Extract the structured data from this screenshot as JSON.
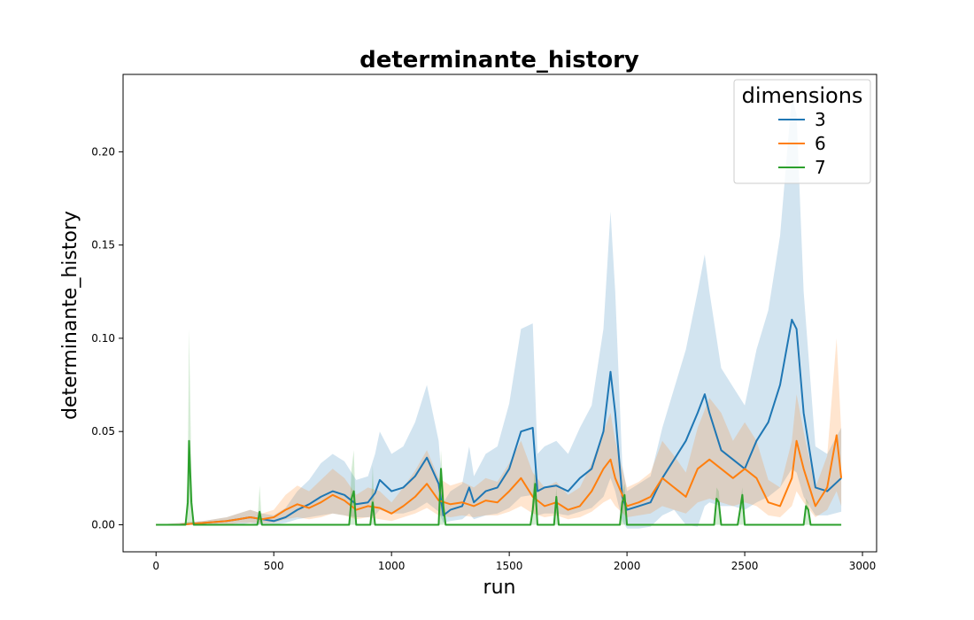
{
  "chart_data": {
    "type": "line",
    "title": "determinante_history",
    "xlabel": "run",
    "ylabel": "determinante_history",
    "xlim": [
      -140,
      3060
    ],
    "ylim": [
      -0.0145,
      0.2415
    ],
    "x_ticks": [
      0,
      500,
      1000,
      1500,
      2000,
      2500,
      3000
    ],
    "y_ticks": [
      0.0,
      0.05,
      0.1,
      0.15,
      0.2
    ],
    "y_tick_labels": [
      "0.00",
      "0.05",
      "0.10",
      "0.15",
      "0.20"
    ],
    "grid": false,
    "legend": {
      "title": "dimensions",
      "placement": "upper right"
    },
    "series": [
      {
        "name": "3",
        "color": "#1f77b4",
        "x": [
          0,
          100,
          200,
          300,
          350,
          400,
          450,
          500,
          550,
          600,
          650,
          700,
          750,
          800,
          850,
          900,
          930,
          950,
          1000,
          1050,
          1100,
          1150,
          1200,
          1220,
          1250,
          1300,
          1330,
          1350,
          1400,
          1450,
          1500,
          1550,
          1600,
          1620,
          1650,
          1700,
          1750,
          1800,
          1850,
          1900,
          1930,
          1950,
          1980,
          2000,
          2050,
          2100,
          2150,
          2200,
          2250,
          2300,
          2330,
          2350,
          2400,
          2450,
          2500,
          2550,
          2600,
          2650,
          2700,
          2720,
          2750,
          2800,
          2850,
          2910
        ],
        "y": [
          0.0,
          0.0,
          0.001,
          0.002,
          0.003,
          0.004,
          0.003,
          0.002,
          0.004,
          0.008,
          0.011,
          0.015,
          0.018,
          0.016,
          0.011,
          0.012,
          0.017,
          0.024,
          0.018,
          0.02,
          0.026,
          0.036,
          0.022,
          0.005,
          0.008,
          0.01,
          0.02,
          0.012,
          0.018,
          0.02,
          0.03,
          0.05,
          0.052,
          0.018,
          0.02,
          0.021,
          0.018,
          0.025,
          0.03,
          0.05,
          0.082,
          0.06,
          0.015,
          0.008,
          0.01,
          0.012,
          0.025,
          0.035,
          0.045,
          0.06,
          0.07,
          0.06,
          0.04,
          0.035,
          0.03,
          0.045,
          0.055,
          0.075,
          0.11,
          0.105,
          0.06,
          0.02,
          0.018,
          0.025
        ],
        "lower": [
          0.0,
          0.0,
          0.0,
          0.0,
          0.0,
          0.001,
          0.0,
          0.0,
          0.001,
          0.003,
          0.004,
          0.005,
          0.006,
          0.005,
          0.004,
          0.004,
          0.005,
          0.008,
          0.006,
          0.006,
          0.008,
          0.012,
          0.007,
          0.001,
          0.002,
          0.003,
          0.006,
          0.003,
          0.005,
          0.006,
          0.009,
          0.015,
          0.016,
          0.005,
          0.006,
          0.006,
          0.005,
          0.007,
          0.009,
          0.015,
          0.025,
          0.018,
          0.002,
          -0.002,
          -0.002,
          -0.001,
          0.005,
          0.008,
          0.0,
          -0.001,
          0.01,
          0.012,
          0.01,
          0.01,
          0.008,
          0.012,
          0.015,
          0.02,
          0.03,
          0.028,
          0.015,
          0.005,
          0.005,
          0.007
        ],
        "upper": [
          0.0,
          0.001,
          0.002,
          0.004,
          0.006,
          0.008,
          0.006,
          0.005,
          0.009,
          0.018,
          0.024,
          0.033,
          0.038,
          0.034,
          0.024,
          0.026,
          0.038,
          0.05,
          0.038,
          0.042,
          0.055,
          0.075,
          0.045,
          0.012,
          0.018,
          0.022,
          0.042,
          0.026,
          0.038,
          0.042,
          0.065,
          0.105,
          0.108,
          0.038,
          0.042,
          0.045,
          0.038,
          0.052,
          0.064,
          0.105,
          0.168,
          0.125,
          0.032,
          0.018,
          0.022,
          0.026,
          0.052,
          0.073,
          0.094,
          0.125,
          0.145,
          0.125,
          0.084,
          0.074,
          0.064,
          0.094,
          0.115,
          0.155,
          0.23,
          0.22,
          0.125,
          0.042,
          0.038,
          0.052
        ]
      },
      {
        "name": "6",
        "color": "#ff7f0e",
        "x": [
          0,
          100,
          200,
          300,
          350,
          400,
          450,
          500,
          550,
          600,
          650,
          700,
          750,
          800,
          850,
          900,
          950,
          1000,
          1050,
          1100,
          1150,
          1200,
          1250,
          1300,
          1350,
          1400,
          1450,
          1500,
          1550,
          1600,
          1650,
          1700,
          1750,
          1800,
          1850,
          1900,
          1930,
          1950,
          2000,
          2050,
          2100,
          2150,
          2200,
          2250,
          2300,
          2350,
          2400,
          2450,
          2500,
          2550,
          2600,
          2650,
          2700,
          2720,
          2750,
          2800,
          2850,
          2890,
          2910
        ],
        "y": [
          0.0,
          0.0,
          0.001,
          0.002,
          0.003,
          0.004,
          0.003,
          0.004,
          0.008,
          0.011,
          0.009,
          0.012,
          0.016,
          0.013,
          0.008,
          0.01,
          0.009,
          0.006,
          0.01,
          0.015,
          0.022,
          0.013,
          0.011,
          0.012,
          0.01,
          0.013,
          0.012,
          0.018,
          0.025,
          0.015,
          0.01,
          0.012,
          0.008,
          0.01,
          0.018,
          0.03,
          0.035,
          0.025,
          0.01,
          0.012,
          0.015,
          0.025,
          0.02,
          0.015,
          0.03,
          0.035,
          0.03,
          0.025,
          0.03,
          0.025,
          0.012,
          0.01,
          0.025,
          0.045,
          0.03,
          0.01,
          0.02,
          0.048,
          0.025
        ],
        "lower": [
          0.0,
          0.0,
          0.0,
          0.0,
          0.001,
          0.001,
          0.001,
          0.001,
          0.003,
          0.004,
          0.003,
          0.004,
          0.006,
          0.005,
          0.003,
          0.004,
          0.003,
          0.002,
          0.004,
          0.006,
          0.009,
          0.005,
          0.004,
          0.005,
          0.004,
          0.005,
          0.005,
          0.007,
          0.01,
          0.006,
          0.004,
          0.005,
          0.003,
          0.004,
          0.007,
          0.012,
          0.014,
          0.01,
          0.004,
          0.005,
          0.006,
          0.01,
          0.008,
          0.006,
          0.012,
          0.014,
          0.012,
          0.01,
          0.012,
          0.01,
          0.005,
          0.004,
          0.01,
          0.018,
          0.012,
          0.004,
          0.008,
          0.018,
          0.01
        ],
        "upper": [
          0.0,
          0.001,
          0.002,
          0.004,
          0.006,
          0.008,
          0.006,
          0.008,
          0.016,
          0.021,
          0.018,
          0.024,
          0.03,
          0.025,
          0.016,
          0.02,
          0.018,
          0.012,
          0.02,
          0.029,
          0.04,
          0.025,
          0.021,
          0.023,
          0.02,
          0.025,
          0.023,
          0.033,
          0.045,
          0.028,
          0.02,
          0.023,
          0.016,
          0.02,
          0.033,
          0.05,
          0.06,
          0.045,
          0.02,
          0.023,
          0.028,
          0.045,
          0.037,
          0.028,
          0.052,
          0.068,
          0.06,
          0.045,
          0.055,
          0.045,
          0.024,
          0.02,
          0.045,
          0.07,
          0.05,
          0.02,
          0.037,
          0.1,
          0.05
        ]
      },
      {
        "name": "7",
        "color": "#2ca02c",
        "x": [
          0,
          125,
          135,
          140,
          150,
          160,
          430,
          440,
          450,
          820,
          830,
          840,
          850,
          910,
          920,
          930,
          1200,
          1210,
          1220,
          1230,
          1590,
          1600,
          1610,
          1620,
          1690,
          1700,
          1710,
          1970,
          1980,
          1990,
          2000,
          2370,
          2380,
          2390,
          2400,
          2470,
          2480,
          2490,
          2500,
          2750,
          2760,
          2770,
          2780,
          2910
        ],
        "y": [
          0.0,
          0.0,
          0.012,
          0.045,
          0.012,
          0.0,
          0.0,
          0.007,
          0.0,
          0.0,
          0.014,
          0.018,
          0.0,
          0.0,
          0.012,
          0.0,
          0.0,
          0.03,
          0.01,
          0.0,
          0.0,
          0.008,
          0.022,
          0.0,
          0.0,
          0.015,
          0.0,
          0.0,
          0.012,
          0.016,
          0.0,
          0.0,
          0.014,
          0.012,
          0.0,
          0.0,
          0.008,
          0.016,
          0.0,
          0.0,
          0.01,
          0.008,
          0.0,
          0.0
        ],
        "lower": [
          0.0,
          0.0,
          0.0,
          0.0,
          0.0,
          0.0,
          0.0,
          0.0,
          0.0,
          0.0,
          0.0,
          0.0,
          0.0,
          0.0,
          0.0,
          0.0,
          0.0,
          0.0,
          0.0,
          0.0,
          0.0,
          0.0,
          0.0,
          0.0,
          0.0,
          0.0,
          0.0,
          0.0,
          0.0,
          0.0,
          0.0,
          0.0,
          0.0,
          0.0,
          0.0,
          0.0,
          0.0,
          0.0,
          0.0,
          0.0,
          0.0,
          0.0,
          0.0,
          0.0
        ],
        "upper": [
          0.0,
          0.0,
          0.03,
          0.105,
          0.03,
          0.0,
          0.0,
          0.021,
          0.0,
          0.0,
          0.03,
          0.04,
          0.0,
          0.0,
          0.032,
          0.0,
          0.0,
          0.04,
          0.02,
          0.0,
          0.0,
          0.018,
          0.03,
          0.0,
          0.0,
          0.02,
          0.0,
          0.0,
          0.018,
          0.022,
          0.0,
          0.0,
          0.02,
          0.018,
          0.0,
          0.0,
          0.012,
          0.02,
          0.0,
          0.0,
          0.014,
          0.012,
          0.0,
          0.0
        ]
      }
    ]
  }
}
